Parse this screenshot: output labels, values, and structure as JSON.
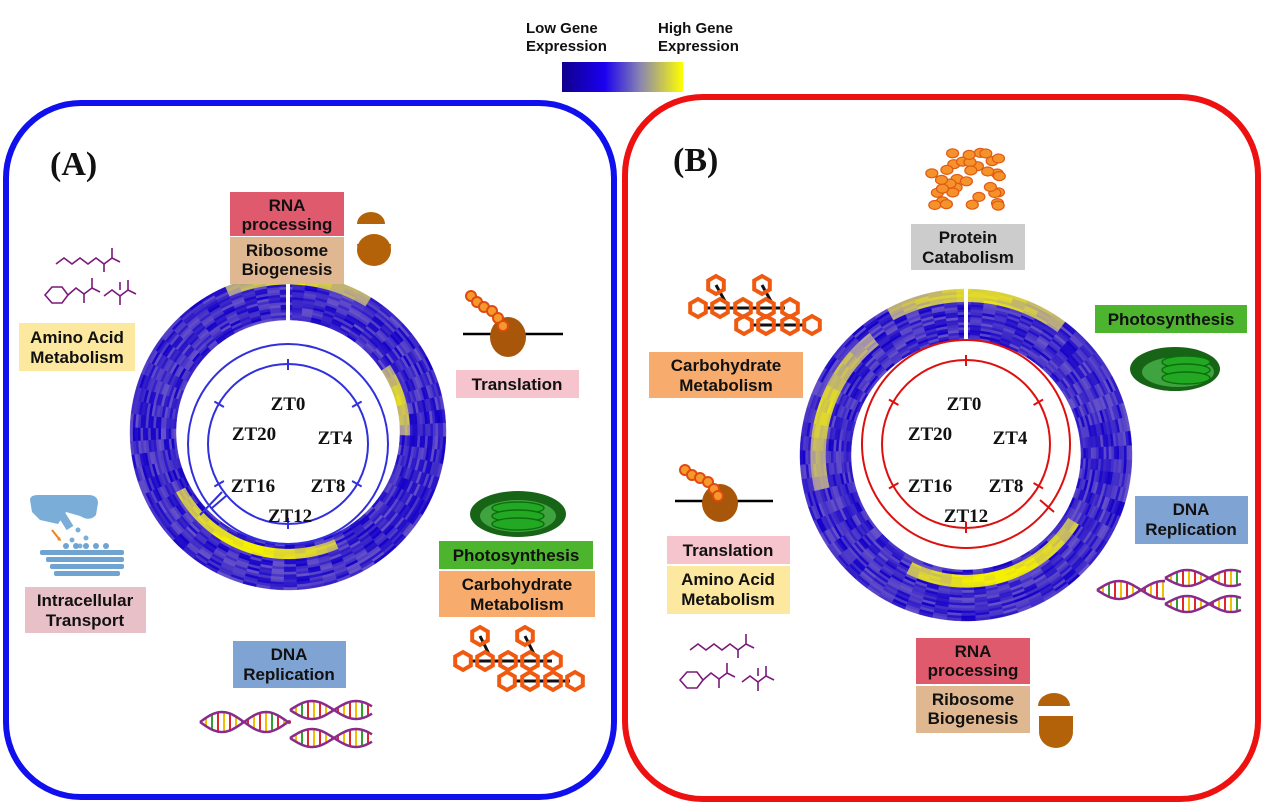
{
  "legend": {
    "low": [
      "Low Gene",
      "Expression"
    ],
    "high": [
      "High Gene",
      "Expression"
    ]
  },
  "colors": {
    "panel_a_border": "#1010ee",
    "panel_b_border": "#ee1111",
    "heat_low": "#1400c8",
    "heat_mid": "#8a78c8",
    "heat_high": "#f4f000",
    "rna_box": "#e05a6e",
    "ribosome_box": "#dfb892",
    "translation_box": "#f6c4cc",
    "amino_box": "#fde8a0",
    "photosynthesis_box": "#4db52d",
    "carbohydrate_box": "#f7ab6c",
    "dna_box": "#7fa3d3",
    "transport_box": "#e8c0c8",
    "protein_box": "#cccccc"
  },
  "panel_a": {
    "letter": "(A)",
    "clock": [
      "ZT0",
      "ZT4",
      "ZT8",
      "ZT12",
      "ZT16",
      "ZT20"
    ],
    "labels": {
      "rna": [
        "RNA",
        "processing"
      ],
      "ribosome": [
        "Ribosome",
        "Biogenesis"
      ],
      "translation": [
        "Translation"
      ],
      "amino": [
        "Amino Acid",
        "Metabolism"
      ],
      "photosynthesis": [
        "Photosynthesis"
      ],
      "carbohydrate": [
        "Carbohydrate",
        "Metabolism"
      ],
      "dna": [
        "DNA",
        "Replication"
      ],
      "transport": [
        "Intracellular",
        "Transport"
      ]
    }
  },
  "panel_b": {
    "letter": "(B)",
    "clock": [
      "ZT0",
      "ZT4",
      "ZT8",
      "ZT12",
      "ZT16",
      "ZT20"
    ],
    "labels": {
      "protein": [
        "Protein",
        "Catabolism"
      ],
      "photosynthesis": [
        "Photosynthesis"
      ],
      "carbohydrate": [
        "Carbohydrate",
        "Metabolism"
      ],
      "dna": [
        "DNA",
        "Replication"
      ],
      "translation": [
        "Translation"
      ],
      "amino": [
        "Amino Acid",
        "Metabolism"
      ],
      "rna": [
        "RNA",
        "processing"
      ],
      "ribosome": [
        "Ribosome",
        "Biogenesis"
      ]
    }
  },
  "icons": [
    "amino-acid-structures-icon",
    "ribosome-icon",
    "translating-ribosome-icon",
    "chloroplast-icon",
    "carbohydrate-molecule-icon",
    "dna-helix-icon",
    "vesicle-transport-icon",
    "protein-fragments-icon"
  ]
}
